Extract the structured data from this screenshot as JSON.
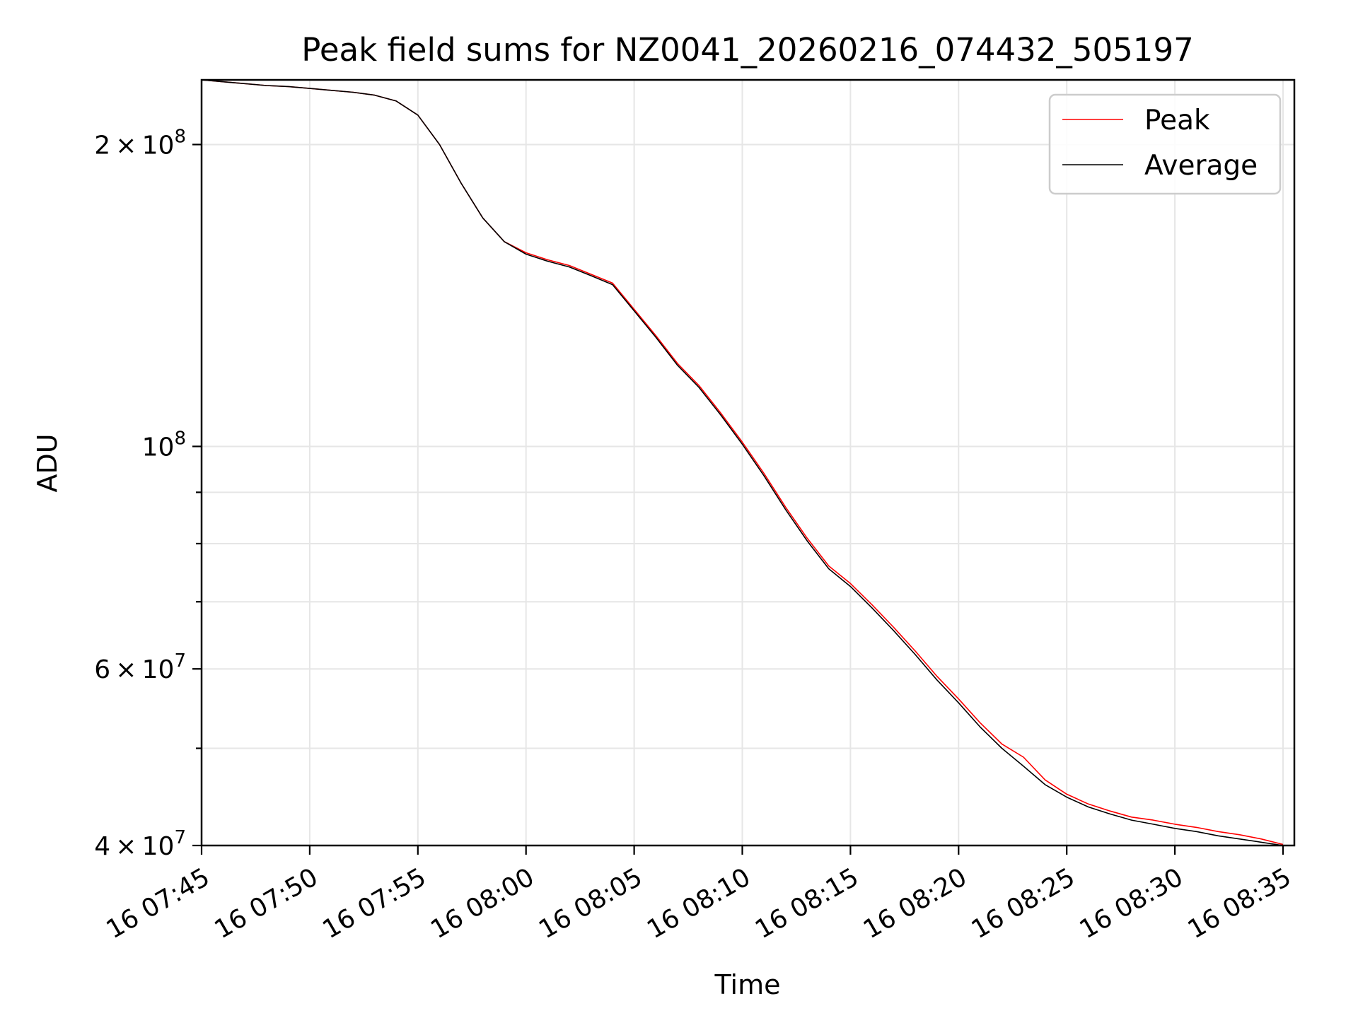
{
  "chart_data": {
    "type": "line",
    "title": "Peak field sums for NZ0041_20260216_074432_505197",
    "xlabel": "Time",
    "ylabel": "ADU",
    "yscale": "log",
    "xlim": [
      "16 07:45",
      "16 08:35"
    ],
    "ylim": [
      40000000,
      232000000
    ],
    "grid": true,
    "legend_position": "top-right",
    "x_tick_labels": [
      "16 07:45",
      "16 07:50",
      "16 07:55",
      "16 08:00",
      "16 08:05",
      "16 08:10",
      "16 08:15",
      "16 08:20",
      "16 08:25",
      "16 08:30",
      "16 08:35"
    ],
    "y_major_ticks": [
      {
        "value": 40000000,
        "mantissa": "4",
        "exponent": "7"
      },
      {
        "value": 60000000,
        "mantissa": "6",
        "exponent": "7"
      },
      {
        "value": 100000000,
        "mantissa": "",
        "exponent": "8"
      },
      {
        "value": 200000000,
        "mantissa": "2",
        "exponent": "8"
      }
    ],
    "y_minor_ticks": [
      50000000,
      70000000,
      80000000,
      90000000
    ],
    "x": [
      "16 07:45",
      "16 07:46",
      "16 07:47",
      "16 07:48",
      "16 07:49",
      "16 07:50",
      "16 07:51",
      "16 07:52",
      "16 07:53",
      "16 07:54",
      "16 07:55",
      "16 07:56",
      "16 07:57",
      "16 07:58",
      "16 07:59",
      "16 08:00",
      "16 08:01",
      "16 08:02",
      "16 08:03",
      "16 08:04",
      "16 08:05",
      "16 08:06",
      "16 08:07",
      "16 08:08",
      "16 08:09",
      "16 08:10",
      "16 08:11",
      "16 08:12",
      "16 08:13",
      "16 08:14",
      "16 08:15",
      "16 08:16",
      "16 08:17",
      "16 08:18",
      "16 08:19",
      "16 08:20",
      "16 08:21",
      "16 08:22",
      "16 08:23",
      "16 08:24",
      "16 08:25",
      "16 08:26",
      "16 08:27",
      "16 08:28",
      "16 08:29",
      "16 08:30",
      "16 08:31",
      "16 08:32",
      "16 08:33",
      "16 08:34",
      "16 08:35"
    ],
    "series": [
      {
        "name": "Peak",
        "color": "#ff0000",
        "values": [
          232000000,
          231000000,
          230000000,
          229000000,
          228500000,
          227500000,
          226500000,
          225500000,
          224000000,
          221000000,
          214000000,
          200000000,
          183000000,
          169000000,
          160000000,
          156000000,
          153500000,
          151500000,
          148500000,
          145500000,
          137000000,
          129000000,
          121000000,
          115000000,
          108000000,
          101000000,
          94000000,
          87000000,
          81000000,
          76000000,
          73000000,
          69500000,
          66000000,
          62500000,
          59000000,
          56000000,
          53000000,
          50500000,
          49000000,
          46500000,
          45000000,
          44000000,
          43300000,
          42700000,
          42400000,
          42000000,
          41700000,
          41300000,
          41000000,
          40600000,
          40100000
        ]
      },
      {
        "name": "Average",
        "color": "#000000",
        "values": [
          232000000,
          231000000,
          230000000,
          229000000,
          228500000,
          227500000,
          226500000,
          225500000,
          224000000,
          221000000,
          214000000,
          200000000,
          183000000,
          169000000,
          160000000,
          155500000,
          153000000,
          151000000,
          148000000,
          145000000,
          136500000,
          128500000,
          120500000,
          114500000,
          107500000,
          100500000,
          93500000,
          86500000,
          80500000,
          75500000,
          72500000,
          69000000,
          65500000,
          62000000,
          58500000,
          55500000,
          52500000,
          50000000,
          48000000,
          46000000,
          44700000,
          43700000,
          43000000,
          42400000,
          42000000,
          41600000,
          41300000,
          40900000,
          40600000,
          40300000,
          40000000
        ]
      }
    ]
  }
}
